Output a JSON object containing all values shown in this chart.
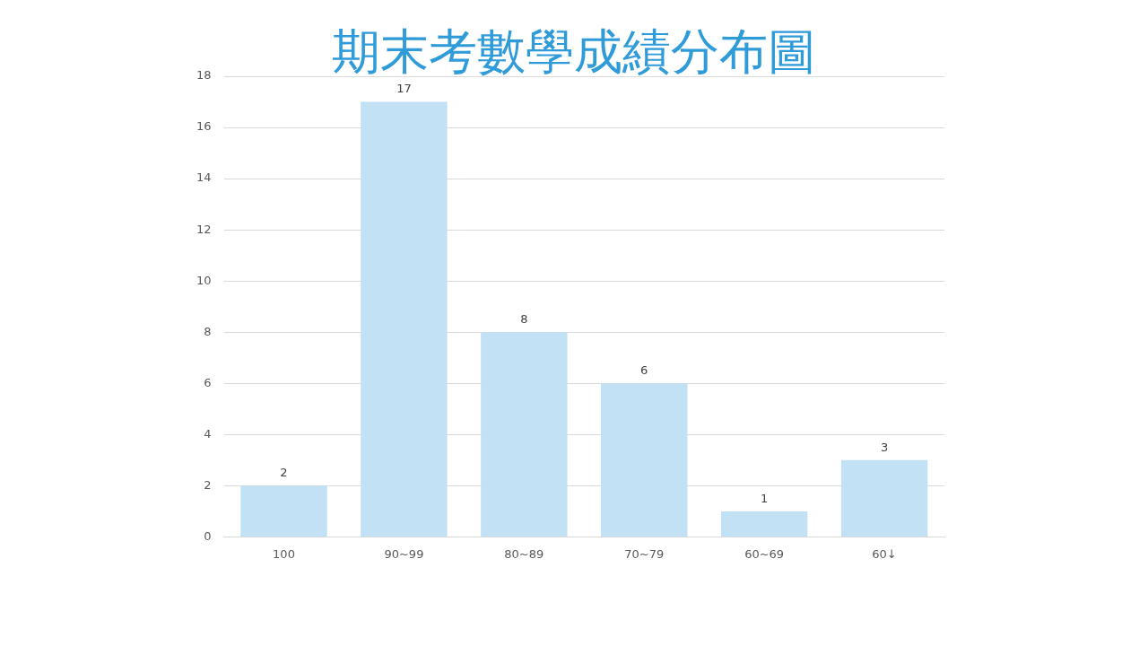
{
  "chart_data": {
    "type": "bar",
    "title": "期末考數學成績分布圖",
    "categories": [
      "100",
      "90~99",
      "80~89",
      "70~79",
      "60~69",
      "60↓"
    ],
    "values": [
      2,
      17,
      8,
      6,
      1,
      3
    ],
    "color": "#c2e1f5",
    "ylim": [
      0,
      18
    ],
    "yticks": [
      0,
      2,
      4,
      6,
      8,
      10,
      12,
      14,
      16,
      18
    ],
    "grid": "y",
    "data_labels": true
  }
}
